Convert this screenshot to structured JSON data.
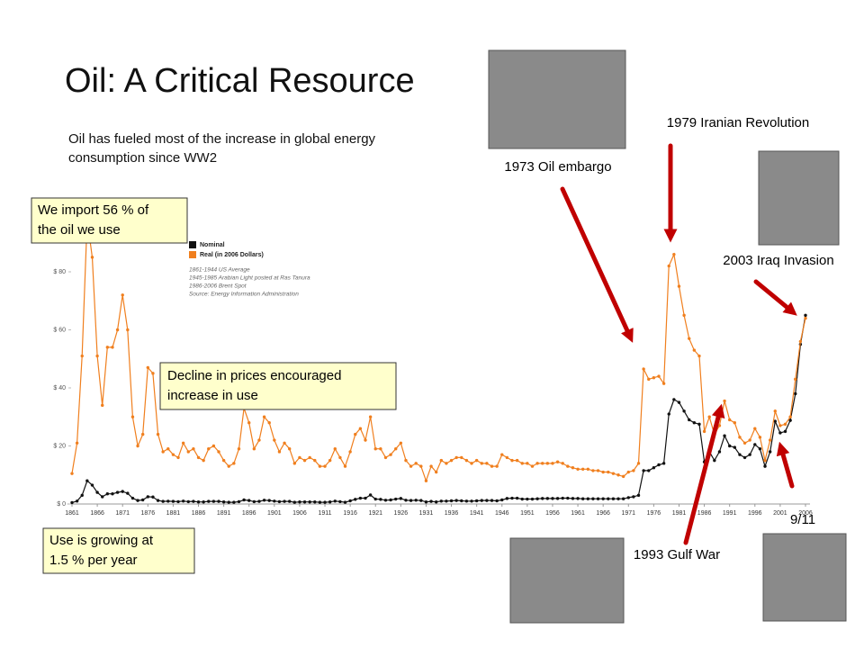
{
  "title": "Oil: A Critical Resource",
  "subtitle": [
    "Oil has fueled most of the increase in global energy",
    "consumption since WW2"
  ],
  "callouts": [
    {
      "lines": [
        "We import 56 % of",
        "the oil we use"
      ]
    },
    {
      "lines": [
        "Decline in prices encouraged",
        "increase in use"
      ]
    },
    {
      "lines": [
        "Use is growing at",
        "1.5 % per year"
      ]
    }
  ],
  "events": [
    "1973 Oil embargo",
    "1979 Iranian Revolution",
    "2003 Iraq Invasion",
    "1993 Gulf War",
    "9/11"
  ],
  "chart_data": {
    "type": "line",
    "notes": [
      "1861-1944 US Average",
      "1945-1985 Arabian Light posted at Ras Tanura",
      "1986-2006 Brent Spot",
      "Source: Energy Information Administration"
    ],
    "x": [
      1861,
      1862,
      1863,
      1864,
      1865,
      1866,
      1867,
      1868,
      1869,
      1870,
      1871,
      1872,
      1873,
      1874,
      1875,
      1876,
      1877,
      1878,
      1879,
      1880,
      1881,
      1882,
      1883,
      1884,
      1885,
      1886,
      1887,
      1888,
      1889,
      1890,
      1891,
      1892,
      1893,
      1894,
      1895,
      1896,
      1897,
      1898,
      1899,
      1900,
      1901,
      1902,
      1903,
      1904,
      1905,
      1906,
      1907,
      1908,
      1909,
      1910,
      1911,
      1912,
      1913,
      1914,
      1915,
      1916,
      1917,
      1918,
      1919,
      1920,
      1921,
      1922,
      1923,
      1924,
      1925,
      1926,
      1927,
      1928,
      1929,
      1930,
      1931,
      1932,
      1933,
      1934,
      1935,
      1936,
      1937,
      1938,
      1939,
      1940,
      1941,
      1942,
      1943,
      1944,
      1945,
      1946,
      1947,
      1948,
      1949,
      1950,
      1951,
      1952,
      1953,
      1954,
      1955,
      1956,
      1957,
      1958,
      1959,
      1960,
      1961,
      1962,
      1963,
      1964,
      1965,
      1966,
      1967,
      1968,
      1969,
      1970,
      1971,
      1972,
      1973,
      1974,
      1975,
      1976,
      1977,
      1978,
      1979,
      1980,
      1981,
      1982,
      1983,
      1984,
      1985,
      1986,
      1987,
      1988,
      1989,
      1990,
      1991,
      1992,
      1993,
      1994,
      1995,
      1996,
      1997,
      1998,
      1999,
      2000,
      2001,
      2002,
      2003,
      2004,
      2005,
      2006
    ],
    "series": [
      {
        "name": "Nominal",
        "color": "#111111",
        "values": [
          0.5,
          1,
          3,
          8,
          6.5,
          4,
          2.5,
          3.5,
          3.5,
          4,
          4.3,
          3.7,
          2,
          1.2,
          1.4,
          2.5,
          2.4,
          1.2,
          0.9,
          0.95,
          0.9,
          0.8,
          1.0,
          0.8,
          0.9,
          0.7,
          0.7,
          0.9,
          0.9,
          0.9,
          0.7,
          0.6,
          0.6,
          0.8,
          1.4,
          1.2,
          0.8,
          0.9,
          1.3,
          1.2,
          1.0,
          0.8,
          0.9,
          0.9,
          0.6,
          0.7,
          0.7,
          0.7,
          0.7,
          0.6,
          0.6,
          0.7,
          1.0,
          0.8,
          0.6,
          1.1,
          1.6,
          2.0,
          2.0,
          3.1,
          1.7,
          1.6,
          1.3,
          1.4,
          1.7,
          1.9,
          1.3,
          1.2,
          1.3,
          1.2,
          0.7,
          0.9,
          0.7,
          1.0,
          1.0,
          1.1,
          1.2,
          1.1,
          1.0,
          1.0,
          1.1,
          1.2,
          1.2,
          1.2,
          1.1,
          1.4,
          1.9,
          2.0,
          2.0,
          1.7,
          1.7,
          1.7,
          1.8,
          1.9,
          1.9,
          1.9,
          1.9,
          2.0,
          2.0,
          1.9,
          1.9,
          1.8,
          1.8,
          1.8,
          1.8,
          1.8,
          1.8,
          1.8,
          1.8,
          1.8,
          2.2,
          2.5,
          3,
          11.5,
          11.5,
          12.5,
          13.5,
          14,
          31,
          36,
          35,
          32,
          29,
          28,
          27.5,
          14.5,
          18,
          15,
          18,
          23.5,
          20,
          19.5,
          17,
          16,
          17,
          20.5,
          19,
          13,
          18,
          28.5,
          24.5,
          25,
          28.8,
          38,
          55,
          65
        ]
      },
      {
        "name": "Real (in 2006 Dollars)",
        "color": "#f07f1e",
        "values": [
          10.5,
          21,
          51,
          98,
          85,
          51,
          34,
          54,
          54,
          60,
          72,
          60,
          30,
          20,
          24,
          47,
          45,
          24,
          18,
          19,
          17,
          16,
          21,
          18,
          19,
          16,
          15,
          19,
          20,
          18,
          15,
          13,
          14,
          19,
          33,
          28,
          19,
          22,
          30,
          28,
          22,
          18,
          21,
          19,
          14,
          16,
          15,
          16,
          15,
          13,
          13,
          15,
          19,
          16,
          13,
          18,
          24,
          26,
          22,
          30,
          19,
          19,
          16,
          17,
          19,
          21,
          15,
          13,
          14,
          13,
          8,
          13,
          11,
          15,
          14,
          15,
          16,
          16,
          15,
          14,
          15,
          14,
          14,
          13,
          13,
          17,
          16,
          15,
          15,
          14,
          14,
          13,
          14,
          14,
          14,
          14,
          14.5,
          14,
          13,
          12.5,
          12,
          12,
          12,
          11.5,
          11.5,
          11,
          11,
          10.5,
          10,
          9.5,
          11,
          11.5,
          14,
          46.5,
          43,
          43.5,
          44,
          41.5,
          82,
          86,
          75,
          65,
          57,
          53,
          51,
          25,
          30,
          24,
          27,
          35.5,
          29,
          28,
          23,
          21,
          22,
          26,
          23,
          15,
          22,
          32,
          27,
          27.5,
          30,
          43,
          56,
          64
        ]
      }
    ],
    "xlim": [
      1861,
      2006
    ],
    "xticks": [
      1861,
      1866,
      1871,
      1876,
      1881,
      1886,
      1891,
      1896,
      1901,
      1906,
      1911,
      1916,
      1921,
      1926,
      1931,
      1936,
      1941,
      1946,
      1951,
      1956,
      1961,
      1966,
      1971,
      1976,
      1981,
      1986,
      1991,
      1996,
      2001,
      2006
    ],
    "ylim": [
      0,
      100
    ],
    "yticks": [
      {
        "value": 0,
        "label": "$ 0"
      },
      {
        "value": 20,
        "label": "$ 20"
      },
      {
        "value": 40,
        "label": "$ 40"
      },
      {
        "value": 60,
        "label": "$ 60"
      },
      {
        "value": 80,
        "label": "$ 80"
      }
    ]
  }
}
